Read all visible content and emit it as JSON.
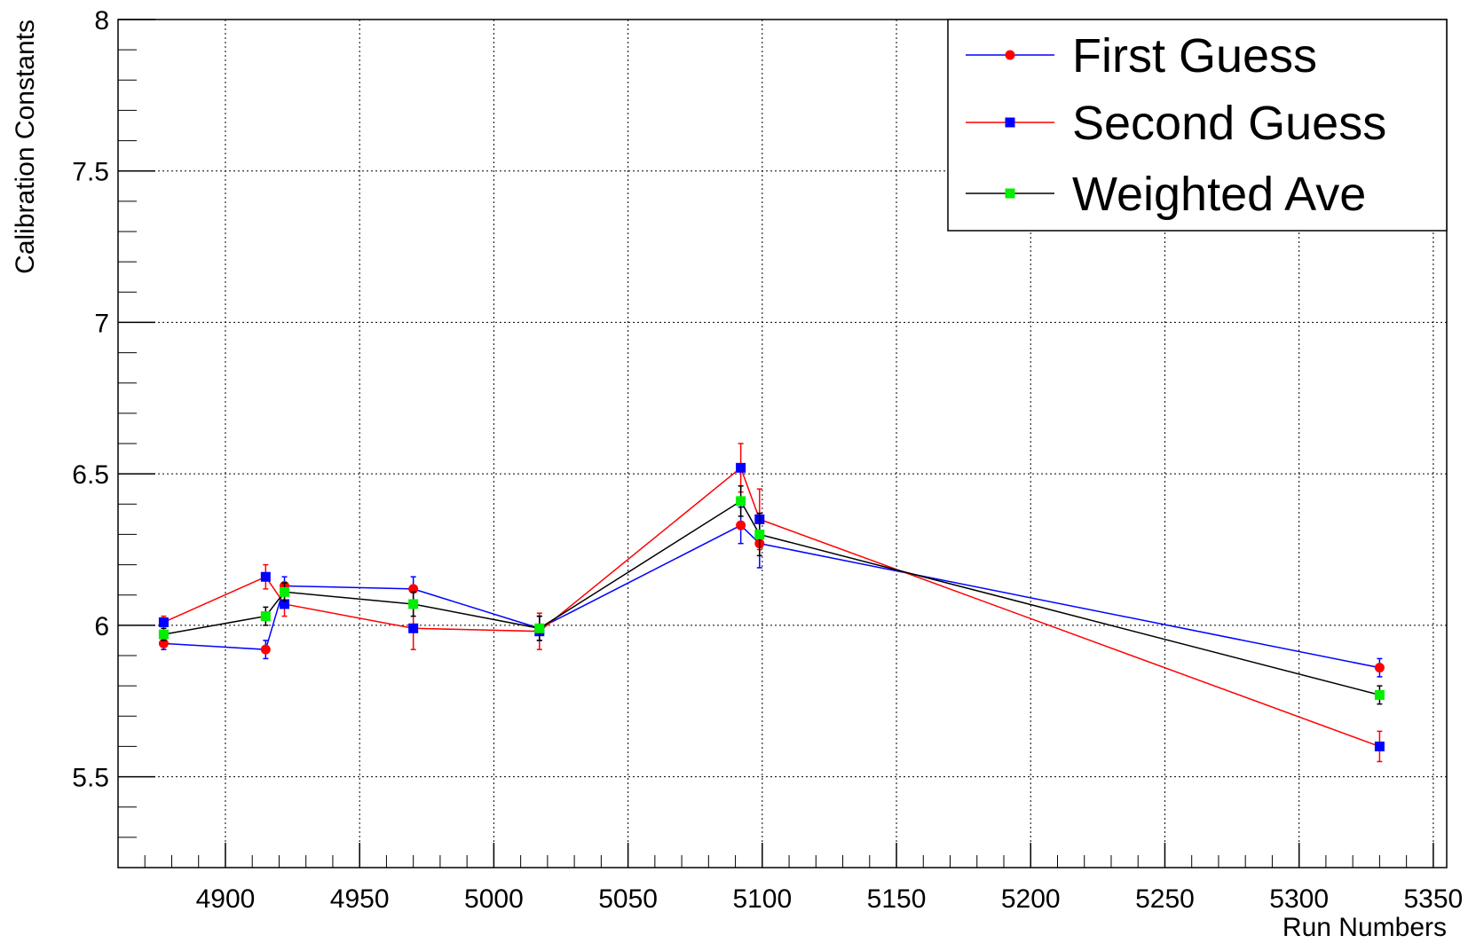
{
  "chart_data": {
    "type": "line",
    "title": "",
    "xlabel": "Run Numbers",
    "ylabel": "Calibration Constants",
    "xlim": [
      4860,
      5355
    ],
    "ylim": [
      5.2,
      8.0
    ],
    "x_ticks": [
      4900,
      4950,
      5000,
      5050,
      5100,
      5150,
      5200,
      5250,
      5300,
      5350
    ],
    "x_tick_labels": [
      "4900",
      "4950",
      "5000",
      "5050",
      "5100",
      "5150",
      "5200",
      "5250",
      "5300",
      "5350"
    ],
    "y_ticks": [
      5.5,
      6.0,
      6.5,
      7.0,
      7.5,
      8.0
    ],
    "y_tick_labels": [
      "5.5",
      "6",
      "6.5",
      "7",
      "7.5",
      "8"
    ],
    "grid": true,
    "legend_position": "top-right",
    "series": [
      {
        "name": "First Guess",
        "line_color": "#0000ff",
        "marker_color": "#ff0000",
        "marker": "circle",
        "x": [
          4877,
          4915,
          4922,
          4970,
          5017,
          5092,
          5099,
          5330
        ],
        "y": [
          5.94,
          5.92,
          6.13,
          6.12,
          5.99,
          6.33,
          6.27,
          5.86
        ],
        "err": [
          0.02,
          0.03,
          0.03,
          0.04,
          0.04,
          0.06,
          0.08,
          0.03
        ]
      },
      {
        "name": "Second Guess",
        "line_color": "#ff0000",
        "marker_color": "#0000ff",
        "marker": "square",
        "x": [
          4877,
          4915,
          4922,
          4970,
          5017,
          5092,
          5099,
          5330
        ],
        "y": [
          6.01,
          6.16,
          6.07,
          5.99,
          5.98,
          6.52,
          6.35,
          5.6
        ],
        "err": [
          0.02,
          0.04,
          0.04,
          0.07,
          0.06,
          0.08,
          0.1,
          0.05
        ]
      },
      {
        "name": "Weighted Ave",
        "line_color": "#000000",
        "marker_color": "#00ee00",
        "marker": "square",
        "x": [
          4877,
          4915,
          4922,
          4970,
          5017,
          5092,
          5099,
          5330
        ],
        "y": [
          5.97,
          6.03,
          6.11,
          6.07,
          5.99,
          6.41,
          6.3,
          5.77
        ],
        "err": [
          0.02,
          0.03,
          0.03,
          0.04,
          0.04,
          0.05,
          0.07,
          0.03
        ]
      }
    ]
  }
}
